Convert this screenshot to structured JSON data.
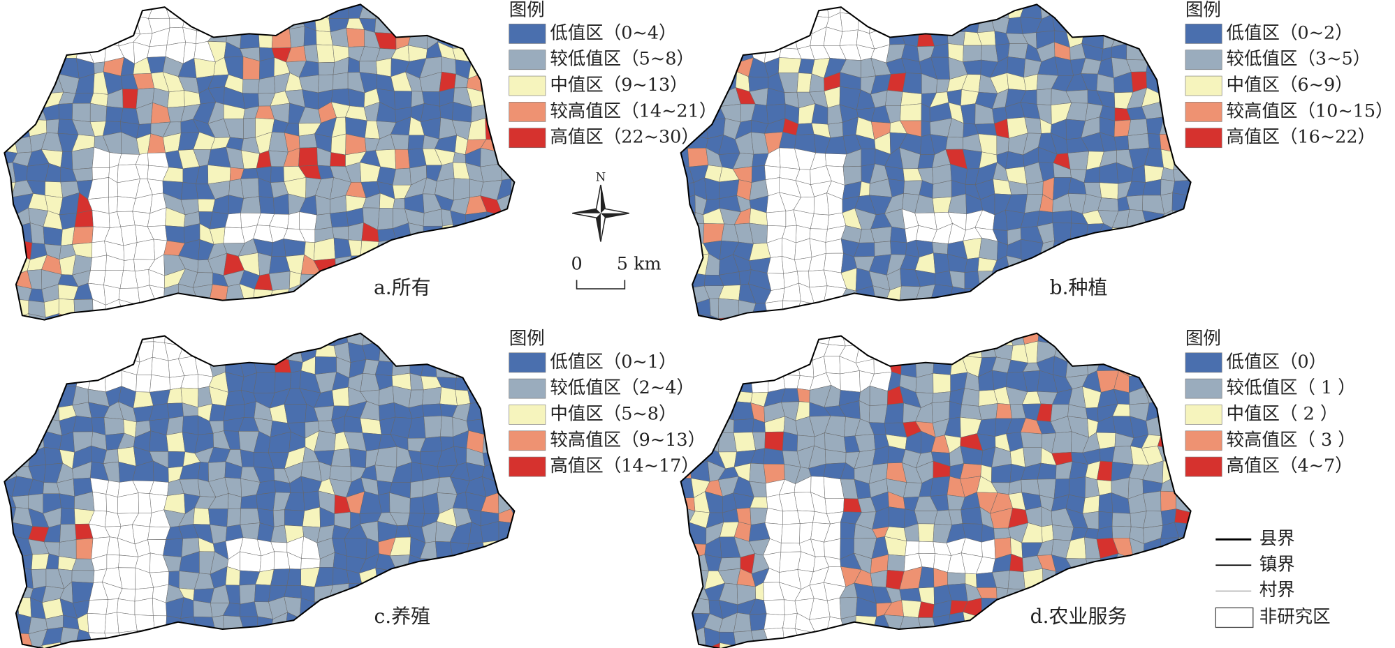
{
  "panels": [
    {
      "caption": "a.所有",
      "legend": {
        "title": "图例",
        "items": [
          {
            "label": "低值区（0~4）",
            "color": "#4a6fae"
          },
          {
            "label": "较低值区（5~8）",
            "color": "#9aacbd"
          },
          {
            "label": "中值区（9~13）",
            "color": "#f6f4bd"
          },
          {
            "label": "较高值区（14~21）",
            "color": "#ee9272"
          },
          {
            "label": "高值区（22~30）",
            "color": "#d6322e"
          }
        ]
      }
    },
    {
      "caption": "b.种植",
      "legend": {
        "title": "图例",
        "items": [
          {
            "label": "低值区（0~2）",
            "color": "#4a6fae"
          },
          {
            "label": "较低值区（3~5）",
            "color": "#9aacbd"
          },
          {
            "label": "中值区（6~9）",
            "color": "#f6f4bd"
          },
          {
            "label": "较高值区（10~15）",
            "color": "#ee9272"
          },
          {
            "label": "高值区（16~22）",
            "color": "#d6322e"
          }
        ]
      }
    },
    {
      "caption": "c.养殖",
      "legend": {
        "title": "图例",
        "items": [
          {
            "label": "低值区（0~1）",
            "color": "#4a6fae"
          },
          {
            "label": "较低值区（2~4）",
            "color": "#9aacbd"
          },
          {
            "label": "中值区（5~8）",
            "color": "#f6f4bd"
          },
          {
            "label": "较高值区（9~13）",
            "color": "#ee9272"
          },
          {
            "label": "高值区（14~17）",
            "color": "#d6322e"
          }
        ]
      }
    },
    {
      "caption": "d.农业服务",
      "legend": {
        "title": "图例",
        "items": [
          {
            "label": "低值区（0）",
            "color": "#4a6fae"
          },
          {
            "label": "较低值区（ 1 ）",
            "color": "#9aacbd"
          },
          {
            "label": "中值区（ 2 ）",
            "color": "#f6f4bd"
          },
          {
            "label": "较高值区（ 3 ）",
            "color": "#ee9272"
          },
          {
            "label": "高值区（4~7）",
            "color": "#d6322e"
          }
        ]
      }
    }
  ],
  "compass": {
    "label": "N"
  },
  "scale_bar": {
    "labels": [
      "0",
      "5 km"
    ]
  },
  "boundary_legend": [
    {
      "label": "县界"
    },
    {
      "label": "镇界"
    },
    {
      "label": "村界"
    },
    {
      "label": "非研究区"
    }
  ]
}
